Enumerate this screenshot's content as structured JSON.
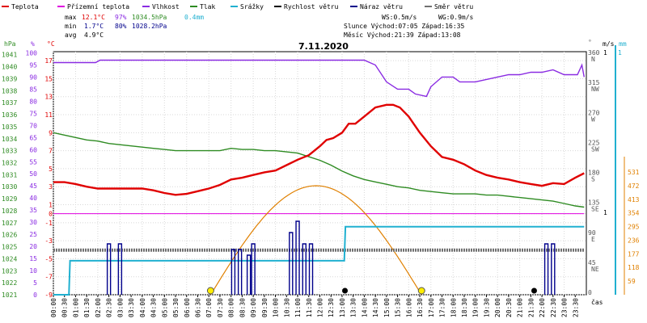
{
  "chart_data": {
    "type": "line",
    "title": "7.11.2020",
    "legend": [
      {
        "name": "Teplota",
        "color": "#e00000"
      },
      {
        "name": "Přízemní teplota",
        "color": "#e000e0"
      },
      {
        "name": "Vlhkost",
        "color": "#8a2be2"
      },
      {
        "name": "Tlak",
        "color": "#2e8b22"
      },
      {
        "name": "Srážky",
        "color": "#20b0d0"
      },
      {
        "name": "Rychlost větru",
        "color": "#000000"
      },
      {
        "name": "Náraz větru",
        "color": "#00008b"
      },
      {
        "name": "Směr větru",
        "color": "#707070"
      }
    ],
    "stats": {
      "max_label": "max",
      "max_temp": "12.1°C",
      "max_hum": "97%",
      "max_press": "1034.5hPa",
      "rain": "0.4mm",
      "min_label": "min",
      "min_temp": "1.7°C",
      "min_hum": "80%",
      "min_press": "1028.2hPa",
      "avg_label": "avg",
      "avg_temp": "4.9°C"
    },
    "info": {
      "ws": "WS:0.5m/s",
      "wg": "WG:0.9m/s",
      "sun": "Slunce Východ:07:05  Západ:16:35",
      "moon": "Měsíc  Východ:21:39  Západ:13:08"
    },
    "axis_labels": {
      "hpa": "hPa",
      "pct": "%",
      "degc": "°C",
      "deg": "°",
      "ms": "m/s",
      "mm": "mm",
      "time": "čas"
    },
    "axes": {
      "hpa_ticks": [
        1041,
        1040,
        1039,
        1038,
        1037,
        1036,
        1035,
        1034,
        1033,
        1032,
        1031,
        1030,
        1029,
        1028,
        1027,
        1026,
        1025,
        1024,
        1023,
        1022,
        1021
      ],
      "pct_ticks": [
        100,
        95,
        90,
        85,
        80,
        75,
        70,
        65,
        60,
        55,
        50,
        45,
        40,
        35,
        30,
        25,
        20,
        15,
        10,
        5,
        0
      ],
      "temp_ticks": [
        17,
        15,
        13,
        11,
        9,
        7,
        5,
        3,
        1,
        0,
        -1,
        -3,
        -5,
        -7,
        -9
      ],
      "temp_range": [
        -9,
        18
      ],
      "dir_ticks": [
        {
          "v": "360",
          "s": "N"
        },
        {
          "v": "315",
          "s": "NW"
        },
        {
          "v": "270",
          "s": "W"
        },
        {
          "v": "225",
          "s": "SW"
        },
        {
          "v": "180",
          "s": "S"
        },
        {
          "v": "135",
          "s": "SE"
        },
        {
          "v": "90",
          "s": "E"
        },
        {
          "v": "45",
          "s": "NE"
        },
        {
          "v": "0",
          "s": ""
        }
      ],
      "ms_top": "1",
      "ms_mid": "1",
      "mm_top": "1",
      "solar_ticks": [
        531,
        472,
        413,
        354,
        295,
        236,
        177,
        118,
        59
      ],
      "time_ticks": [
        "00:00",
        "00:30",
        "01:00",
        "01:30",
        "02:00",
        "02:30",
        "03:00",
        "03:30",
        "04:00",
        "04:30",
        "05:00",
        "05:30",
        "06:00",
        "06:30",
        "07:00",
        "07:30",
        "08:00",
        "08:30",
        "09:00",
        "09:30",
        "10:00",
        "10:30",
        "11:00",
        "11:30",
        "12:00",
        "12:30",
        "13:00",
        "13:30",
        "14:00",
        "14:30",
        "15:00",
        "15:30",
        "16:00",
        "16:30",
        "17:00",
        "17:30",
        "18:00",
        "18:30",
        "19:00",
        "19:30",
        "20:00",
        "20:30",
        "21:00",
        "21:30",
        "22:00",
        "22:30",
        "23:00",
        "23:30"
      ]
    },
    "series": {
      "temperature": {
        "x": [
          0,
          0.5,
          1,
          1.5,
          2,
          3,
          4,
          4.5,
          5,
          5.5,
          6,
          6.5,
          7,
          7.5,
          8,
          8.5,
          9,
          9.5,
          10,
          10.5,
          11,
          11.5,
          12,
          12.3,
          12.6,
          13,
          13.3,
          13.6,
          14,
          14.5,
          15,
          15.3,
          15.6,
          16,
          16.5,
          17,
          17.5,
          18,
          18.5,
          19,
          19.5,
          20,
          20.5,
          21,
          21.5,
          22,
          22.5,
          23,
          23.5,
          23.9
        ],
        "y": [
          3.5,
          3.5,
          3.3,
          3.0,
          2.8,
          2.8,
          2.8,
          2.6,
          2.3,
          2.1,
          2.2,
          2.5,
          2.8,
          3.2,
          3.8,
          4.0,
          4.3,
          4.6,
          4.8,
          5.4,
          6.0,
          6.5,
          7.5,
          8.2,
          8.4,
          9.0,
          10.0,
          10.0,
          10.8,
          11.8,
          12.1,
          12.1,
          11.8,
          10.8,
          9.0,
          7.5,
          6.3,
          6.0,
          5.5,
          4.8,
          4.3,
          4.0,
          3.8,
          3.5,
          3.3,
          3.1,
          3.4,
          3.3,
          4.0,
          4.5
        ]
      },
      "ground_temp": {
        "x": [
          0,
          23.9
        ],
        "y": [
          0,
          0
        ]
      },
      "humidity": {
        "x": [
          0,
          1,
          1.9,
          2.1,
          3,
          4,
          5,
          6,
          7,
          8,
          9,
          10,
          11,
          12,
          13,
          13.3,
          14,
          14.5,
          15,
          15.5,
          16,
          16.3,
          16.8,
          17,
          17.5,
          18,
          18.3,
          19,
          20,
          20.5,
          21,
          21.5,
          22,
          22.5,
          23,
          23.4,
          23.6,
          23.8,
          23.9
        ],
        "y": [
          96,
          96,
          96,
          97,
          97,
          97,
          97,
          97,
          97,
          97,
          97,
          97,
          97,
          97,
          97,
          97,
          97,
          95,
          88,
          85,
          85,
          83,
          82,
          86,
          90,
          90,
          88,
          88,
          90,
          91,
          91,
          92,
          92,
          93,
          91,
          91,
          91,
          95,
          90
        ]
      },
      "pressure": {
        "x": [
          0,
          0.5,
          1,
          1.5,
          2,
          2.5,
          3,
          3.5,
          4,
          4.5,
          5,
          5.5,
          6,
          6.5,
          7,
          7.5,
          8,
          8.5,
          9,
          9.5,
          10,
          10.5,
          11,
          11.5,
          12,
          12.5,
          13,
          13.5,
          14,
          14.5,
          15,
          15.5,
          16,
          16.5,
          17,
          17.5,
          18,
          18.5,
          19,
          19.5,
          20,
          20.5,
          21,
          21.5,
          22,
          22.5,
          23,
          23.5,
          23.9
        ],
        "y": [
          1034.5,
          1034.3,
          1034.1,
          1033.9,
          1033.8,
          1033.6,
          1033.5,
          1033.4,
          1033.3,
          1033.2,
          1033.1,
          1033.0,
          1033.0,
          1033.0,
          1033.0,
          1033.0,
          1033.2,
          1033.1,
          1033.1,
          1033.0,
          1033.0,
          1032.9,
          1032.8,
          1032.5,
          1032.2,
          1031.8,
          1031.3,
          1030.9,
          1030.6,
          1030.4,
          1030.2,
          1030.0,
          1029.9,
          1029.7,
          1029.6,
          1029.5,
          1029.4,
          1029.4,
          1029.4,
          1029.3,
          1029.3,
          1029.2,
          1029.1,
          1029.0,
          1028.9,
          1028.8,
          1028.6,
          1028.4,
          1028.3
        ]
      },
      "rain": {
        "x": [
          0,
          0.7,
          0.75,
          13.1,
          13.15,
          23.9
        ],
        "y": [
          0,
          0,
          0.2,
          0.2,
          0.4,
          0.4
        ]
      },
      "solar": {
        "peak_time": 12.0,
        "peak": 472,
        "start": 7.08,
        "end": 16.58
      },
      "wind_gust": {
        "x": [
          2.5,
          3.0,
          8.1,
          8.4,
          8.8,
          9.0,
          10.7,
          11.0,
          11.3,
          11.6,
          22.2,
          22.5
        ],
        "y": [
          0.9,
          0.9,
          0.8,
          0.8,
          0.7,
          0.9,
          1.1,
          1.3,
          0.9,
          0.9,
          0.9,
          0.9
        ]
      },
      "wind_dir": {
        "x": [
          0,
          23.9
        ],
        "y": [
          67,
          67
        ]
      },
      "sun_markers": [
        7.08,
        16.58
      ],
      "moon_markers": [
        13.13,
        21.65
      ]
    }
  }
}
